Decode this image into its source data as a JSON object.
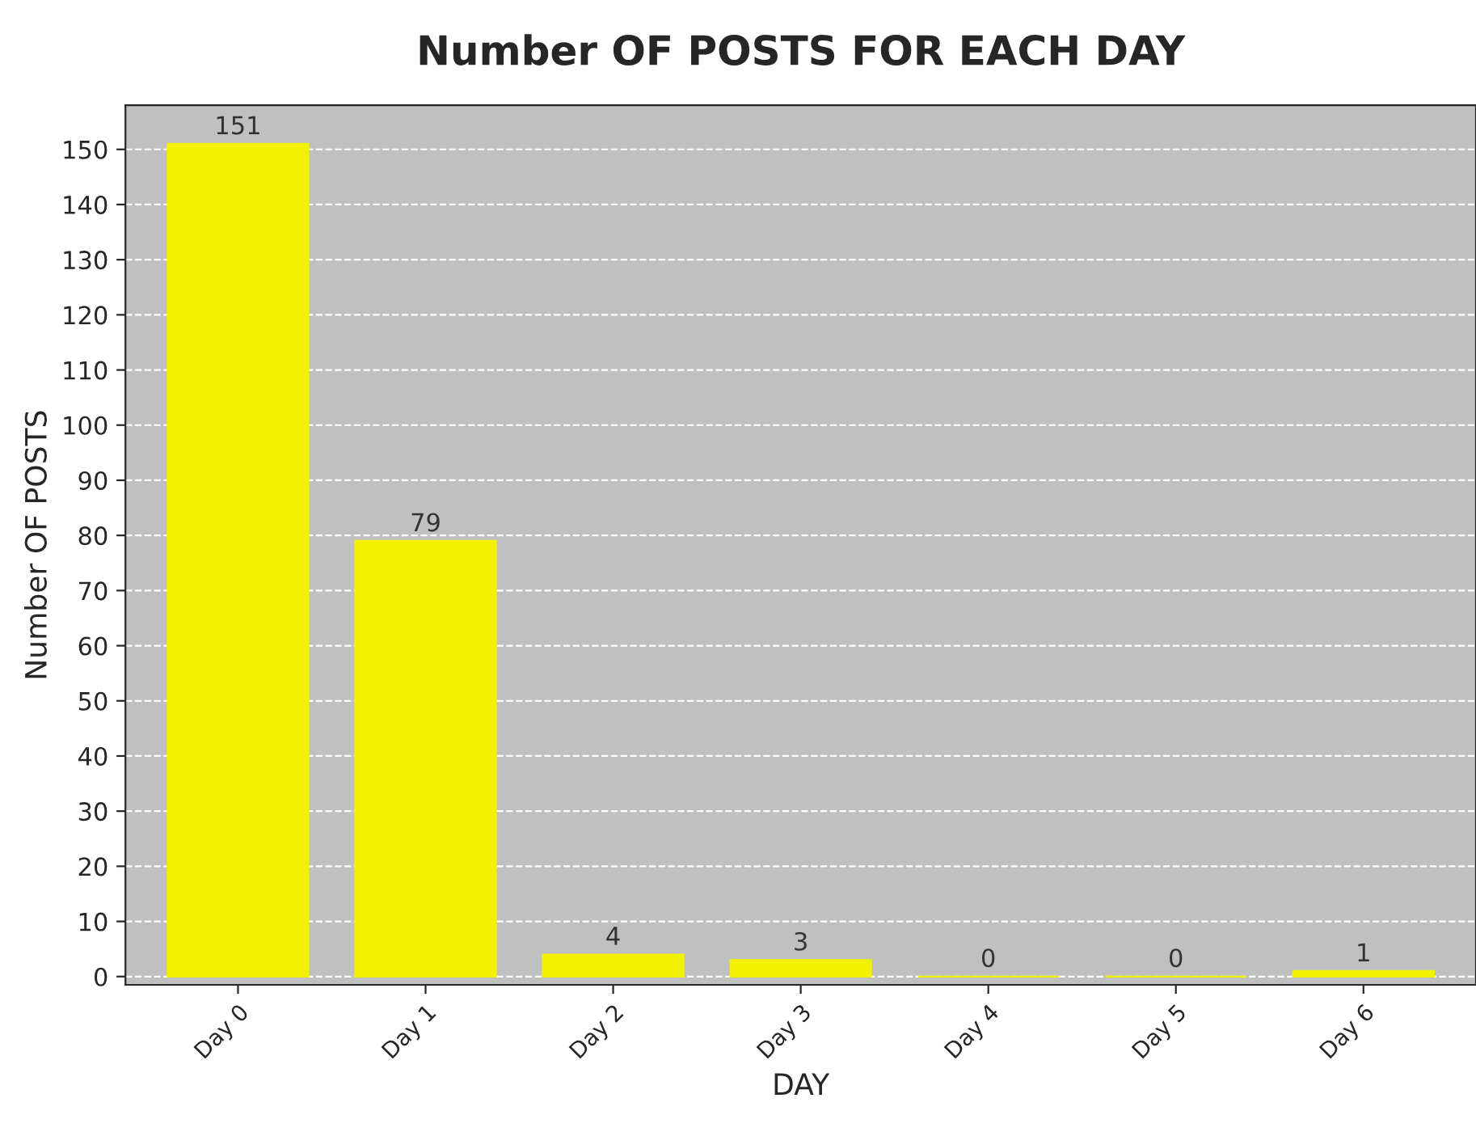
{
  "chart_data": {
    "type": "bar",
    "title": "Number OF POSTS FOR EACH DAY",
    "xlabel": "DAY",
    "ylabel": "Number OF POSTS",
    "categories": [
      "Day 0",
      "Day 1",
      "Day 2",
      "Day 3",
      "Day 4",
      "Day 5",
      "Day 6"
    ],
    "values": [
      151,
      79,
      4,
      3,
      0,
      0,
      1
    ],
    "color": "#f2f200",
    "ylim": [
      -1.5,
      158
    ],
    "yticks": [
      0,
      10,
      20,
      30,
      40,
      50,
      60,
      70,
      80,
      90,
      100,
      110,
      120,
      130,
      140,
      150
    ],
    "grid": "y",
    "data_labels": true,
    "legend": false
  }
}
